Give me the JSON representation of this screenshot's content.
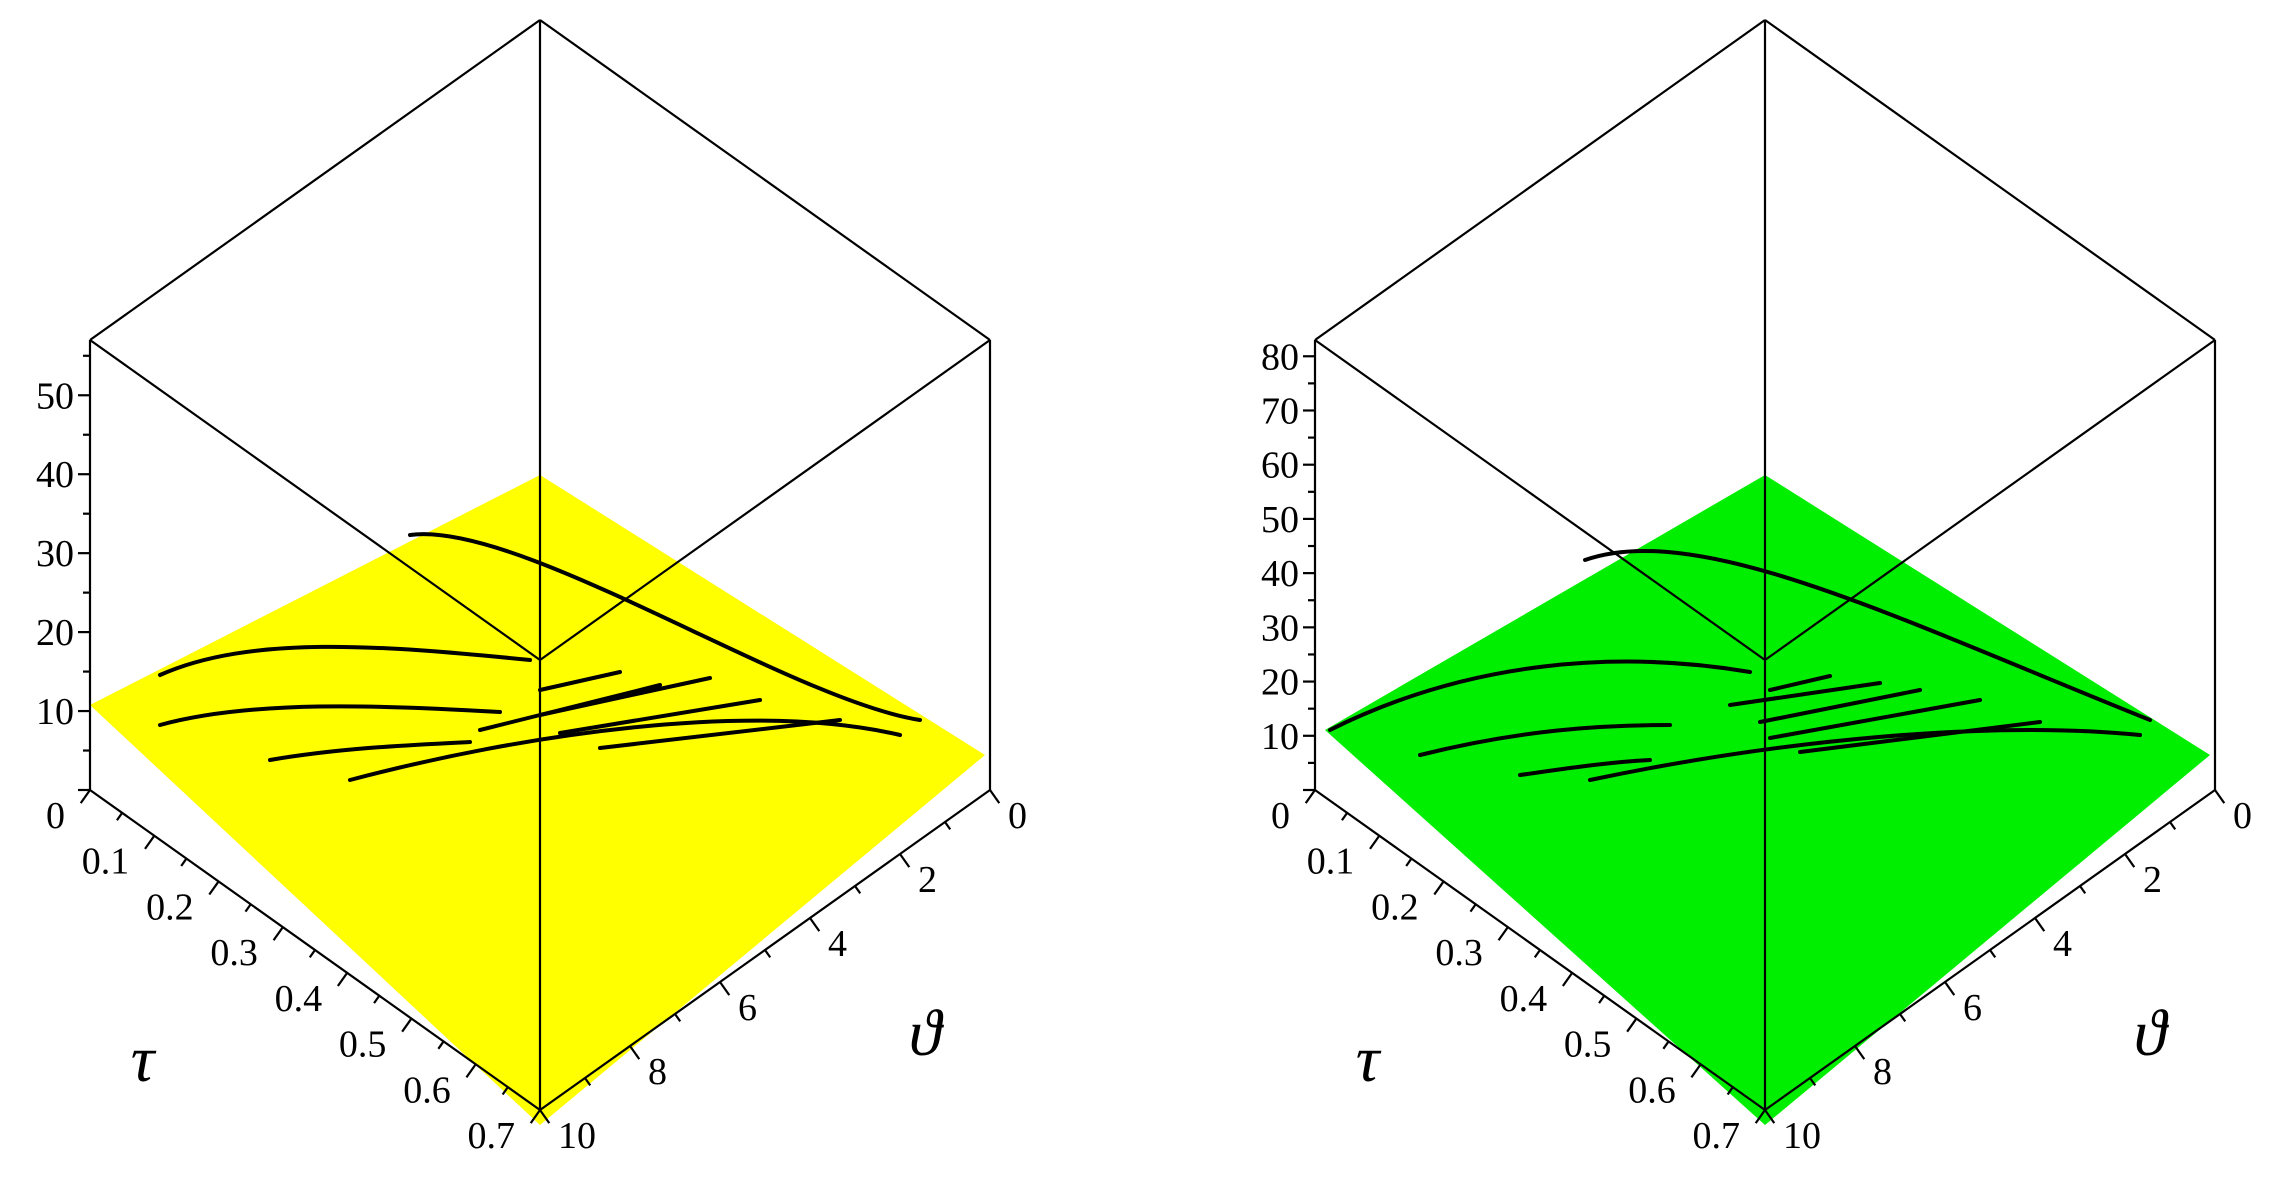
{
  "chart_data": [
    {
      "type": "surface3d",
      "surface_color": "#ffff00",
      "z_ticks": [
        "10",
        "20",
        "30",
        "40",
        "50"
      ],
      "tau_ticks": [
        "0",
        "0.1",
        "0.2",
        "0.3",
        "0.4",
        "0.5",
        "0.6",
        "0.7"
      ],
      "theta_ticks": [
        "0",
        "2",
        "4",
        "6",
        "8",
        "10"
      ],
      "xlabel": "τ",
      "ylabel": "ϑ",
      "xlim": [
        0,
        0.7
      ],
      "ylim": [
        0,
        10
      ],
      "zlim": [
        0,
        57
      ]
    },
    {
      "type": "surface3d",
      "surface_color": "#00ee00",
      "z_ticks": [
        "10",
        "20",
        "30",
        "40",
        "50",
        "60",
        "70",
        "80"
      ],
      "tau_ticks": [
        "0",
        "0.1",
        "0.2",
        "0.3",
        "0.4",
        "0.5",
        "0.6",
        "0.7"
      ],
      "theta_ticks": [
        "0",
        "2",
        "4",
        "6",
        "8",
        "10"
      ],
      "xlabel": "τ",
      "ylabel": "ϑ",
      "xlim": [
        0,
        0.7
      ],
      "ylim": [
        0,
        10
      ],
      "zlim": [
        0,
        83
      ]
    }
  ]
}
